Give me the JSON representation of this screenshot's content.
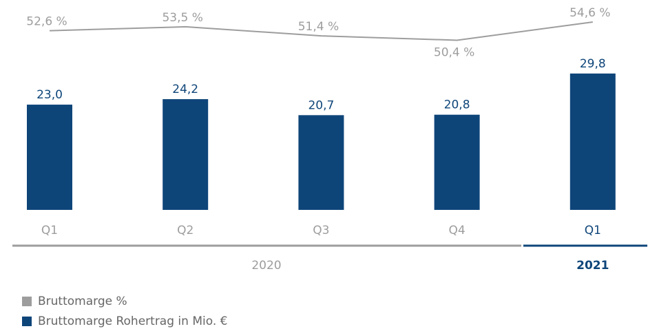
{
  "chart_data": {
    "type": "bar",
    "categories": [
      "Q1",
      "Q2",
      "Q3",
      "Q4",
      "Q1"
    ],
    "groups": [
      {
        "name": "2020",
        "color": "#9d9d9d"
      },
      {
        "name": "2021",
        "color": "#0e4579"
      }
    ],
    "series": [
      {
        "name": "Bruttomarge %",
        "type": "line",
        "color": "#9d9d9d",
        "values": [
          52.6,
          53.5,
          51.4,
          50.4,
          54.6
        ],
        "value_labels": [
          "52,6 %",
          "53,5 %",
          "51,4 %",
          "50,4 %",
          "54,6 %"
        ]
      },
      {
        "name": "Bruttomarge Rohertrag in Mio. €",
        "type": "bar",
        "color": "#0e4579",
        "values": [
          23.0,
          24.2,
          20.7,
          20.8,
          29.8
        ],
        "value_labels": [
          "23,0",
          "24,2",
          "20,7",
          "20,8",
          "29,8"
        ]
      }
    ]
  }
}
